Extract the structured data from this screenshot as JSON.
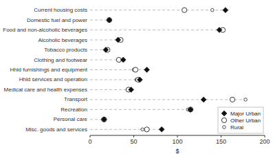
{
  "chart_data": {
    "type": "dot",
    "orientation": "horizontal",
    "categories": [
      "Current housing costs",
      "Domestic fuel and power",
      "Food and non-alcoholic beverages",
      "Alcoholic beverages",
      "Tobacco products",
      "Clothing and footwear",
      "Hhld furnishings and equipment",
      "Hhld services and operation",
      "Medical care and health expenses",
      "Transport",
      "Recreation",
      "Personal care",
      "Misc. goods and services"
    ],
    "series": [
      {
        "name": "Major Urban",
        "color": "#111111",
        "marker": "diamond",
        "values": [
          155,
          22,
          148,
          32,
          18,
          38,
          65,
          57,
          47,
          130,
          115,
          16,
          82
        ]
      },
      {
        "name": "Other Urban",
        "color": "#222222",
        "marker": "circle",
        "values": [
          108,
          22,
          152,
          35,
          20,
          33,
          52,
          55,
          44,
          163,
          115,
          16,
          65
        ]
      },
      {
        "name": "Rural",
        "color": "#222222",
        "marker": "small-circle",
        "values": [
          140,
          21,
          150,
          33,
          19,
          33,
          50,
          53,
          43,
          178,
          112,
          15,
          60
        ]
      }
    ],
    "xlabel": "$",
    "xlim": [
      0,
      200
    ],
    "xticks": [
      0,
      50,
      100,
      150,
      200
    ],
    "grid": false,
    "legend": "lower right"
  }
}
